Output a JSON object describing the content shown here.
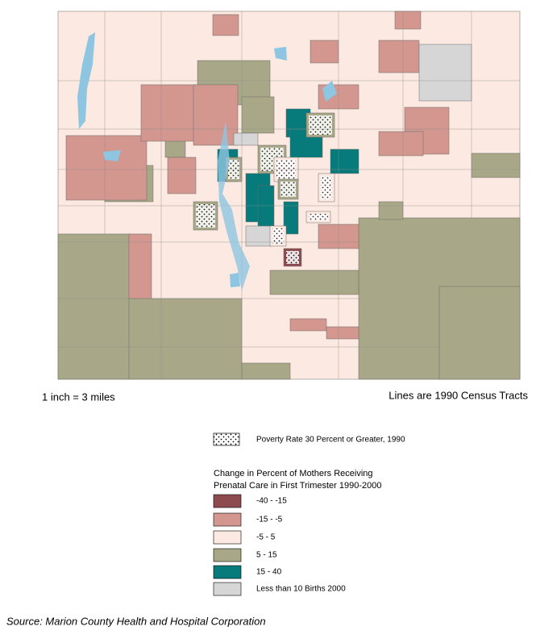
{
  "map": {
    "scale_note": "1 inch = 3 miles",
    "tract_note": "Lines are 1990 Census Tracts"
  },
  "legend": {
    "poverty_label": "Poverty Rate 30 Percent or Greater, 1990",
    "title_lines": [
      "Change in Percent of Mothers Receiving",
      "Prenatal Care in First Trimester 1990-2000"
    ],
    "items": [
      {
        "label": "-40 - -15",
        "color": "#8e4b4f"
      },
      {
        "label": "-15 - -5",
        "color": "#d3978f"
      },
      {
        "label": "-5 - 5",
        "color": "#fce9e1"
      },
      {
        "label": "5 - 15",
        "color": "#a8a888"
      },
      {
        "label": "15 - 40",
        "color": "#077b7b"
      },
      {
        "label": "Less than 10 Births 2000",
        "color": "#d6d6d6"
      }
    ]
  },
  "source": "Source: Marion County Health and Hospital Corporation"
}
